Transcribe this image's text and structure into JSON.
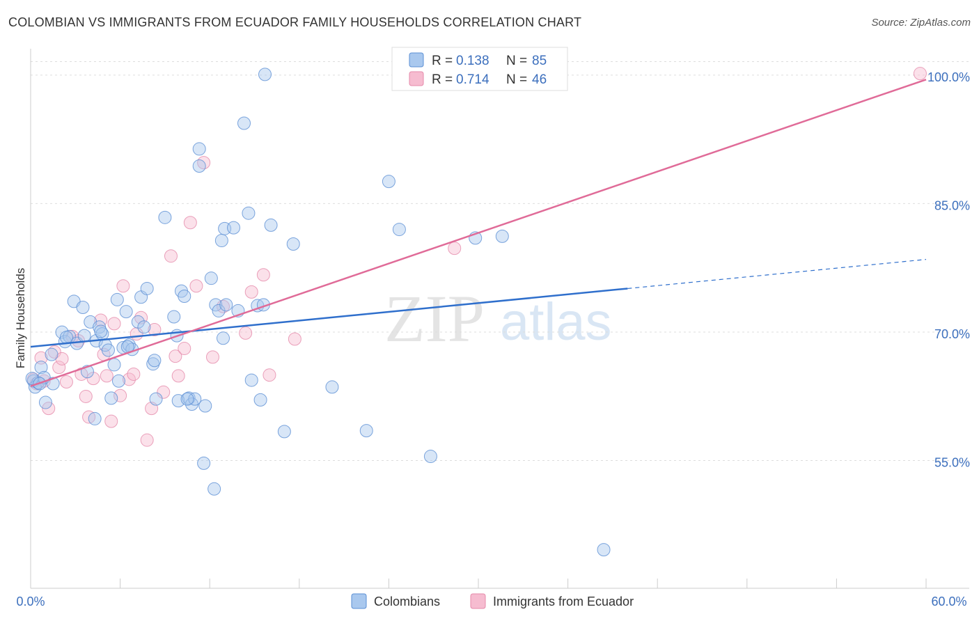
{
  "header": {
    "title": "COLOMBIAN VS IMMIGRANTS FROM ECUADOR FAMILY HOUSEHOLDS CORRELATION CHART",
    "source": "Source: ZipAtlas.com"
  },
  "watermark": {
    "zip": "ZIP",
    "atlas": "atlas"
  },
  "colors": {
    "colombians_fill": "#a9c8ee",
    "colombians_stroke": "#5b8fd4",
    "colombians_line": "#2f6fcc",
    "ecuador_fill": "#f6bcd0",
    "ecuador_stroke": "#e58aaa",
    "ecuador_line": "#e06b98",
    "grid": "#dddddd",
    "tick_label": "#3c6fbd"
  },
  "legend": {
    "rows": [
      {
        "r_label": "R =",
        "r_value": "0.138",
        "n_label": "N =",
        "n_value": "85"
      },
      {
        "r_label": "R =",
        "r_value": "0.714",
        "n_label": "N =",
        "n_value": "46"
      }
    ]
  },
  "bottom_legend": {
    "items": [
      "Colombians",
      "Immigrants from Ecuador"
    ]
  },
  "chart_data": {
    "type": "scatter",
    "title": "COLOMBIAN VS IMMIGRANTS FROM ECUADOR FAMILY HOUSEHOLDS CORRELATION CHART",
    "xlabel": "",
    "ylabel": "Family Households",
    "xlim": [
      0,
      60
    ],
    "ylim": [
      40,
      103
    ],
    "x_tick_labels": [
      "0.0%",
      "60.0%"
    ],
    "y_ticks": [
      55,
      70,
      85,
      100
    ],
    "y_tick_labels": [
      "55.0%",
      "70.0%",
      "85.0%",
      "100.0%"
    ],
    "grid": true,
    "legend_position": "top-center",
    "series": [
      {
        "name": "Colombians",
        "r": 0.138,
        "n": 85,
        "trend": {
          "x": [
            0,
            40,
            60
          ],
          "y": [
            68.2,
            75.0,
            78.4
          ],
          "dashed_from_x": 40
        },
        "points": [
          [
            0.2,
            64.2
          ],
          [
            0.3,
            63.5
          ],
          [
            0.5,
            64.0
          ],
          [
            0.7,
            65.8
          ],
          [
            0.9,
            64.6
          ],
          [
            1.0,
            61.7
          ],
          [
            1.5,
            63.9
          ],
          [
            1.4,
            67.3
          ],
          [
            2.1,
            69.9
          ],
          [
            2.3,
            68.8
          ],
          [
            2.6,
            69.4
          ],
          [
            2.9,
            73.5
          ],
          [
            3.1,
            68.6
          ],
          [
            3.5,
            72.8
          ],
          [
            3.6,
            69.5
          ],
          [
            3.8,
            65.3
          ],
          [
            4.0,
            71.1
          ],
          [
            4.3,
            59.8
          ],
          [
            4.4,
            68.9
          ],
          [
            4.6,
            70.5
          ],
          [
            4.8,
            69.7
          ],
          [
            5.0,
            68.4
          ],
          [
            5.2,
            67.8
          ],
          [
            5.4,
            62.2
          ],
          [
            5.6,
            66.1
          ],
          [
            5.8,
            73.7
          ],
          [
            5.9,
            64.2
          ],
          [
            6.2,
            68.1
          ],
          [
            6.4,
            72.3
          ],
          [
            6.6,
            68.4
          ],
          [
            6.8,
            67.9
          ],
          [
            7.2,
            71.1
          ],
          [
            7.4,
            74.0
          ],
          [
            7.6,
            70.5
          ],
          [
            7.8,
            75.0
          ],
          [
            8.2,
            66.2
          ],
          [
            8.3,
            66.6
          ],
          [
            8.4,
            62.1
          ],
          [
            9.0,
            83.3
          ],
          [
            9.6,
            71.7
          ],
          [
            9.8,
            69.5
          ],
          [
            9.9,
            61.9
          ],
          [
            10.1,
            74.7
          ],
          [
            10.3,
            74.1
          ],
          [
            10.6,
            62.2
          ],
          [
            10.8,
            61.5
          ],
          [
            11.0,
            62.1
          ],
          [
            11.3,
            91.3
          ],
          [
            11.3,
            89.3
          ],
          [
            11.6,
            54.6
          ],
          [
            11.7,
            61.3
          ],
          [
            12.1,
            76.2
          ],
          [
            12.3,
            51.6
          ],
          [
            12.4,
            73.1
          ],
          [
            12.6,
            72.4
          ],
          [
            12.8,
            80.6
          ],
          [
            12.9,
            69.2
          ],
          [
            13.0,
            82.0
          ],
          [
            13.6,
            82.1
          ],
          [
            13.9,
            72.4
          ],
          [
            14.3,
            94.3
          ],
          [
            14.6,
            83.8
          ],
          [
            14.8,
            64.3
          ],
          [
            15.2,
            73.0
          ],
          [
            15.4,
            62.0
          ],
          [
            15.7,
            100.0
          ],
          [
            16.1,
            82.4
          ],
          [
            17.0,
            58.3
          ],
          [
            17.6,
            80.2
          ],
          [
            20.2,
            63.5
          ],
          [
            22.5,
            58.4
          ],
          [
            24.0,
            87.5
          ],
          [
            24.7,
            81.9
          ],
          [
            26.8,
            55.4
          ],
          [
            29.8,
            80.9
          ],
          [
            31.6,
            81.1
          ],
          [
            38.4,
            44.5
          ],
          [
            0.1,
            64.5
          ],
          [
            0.6,
            63.9
          ],
          [
            2.4,
            69.3
          ],
          [
            4.7,
            70.0
          ],
          [
            6.5,
            68.2
          ],
          [
            10.5,
            62.1
          ],
          [
            13.1,
            73.1
          ],
          [
            15.6,
            73.1
          ]
        ]
      },
      {
        "name": "Immigrants from Ecuador",
        "r": 0.714,
        "n": 46,
        "trend": {
          "x": [
            0,
            60
          ],
          "y": [
            63.6,
            99.4
          ]
        },
        "points": [
          [
            0.2,
            64.4
          ],
          [
            0.4,
            63.9
          ],
          [
            0.7,
            66.9
          ],
          [
            0.9,
            64.2
          ],
          [
            1.2,
            61.0
          ],
          [
            1.6,
            67.6
          ],
          [
            1.9,
            65.8
          ],
          [
            2.1,
            66.8
          ],
          [
            2.4,
            64.1
          ],
          [
            2.8,
            69.4
          ],
          [
            3.2,
            68.9
          ],
          [
            3.4,
            65.0
          ],
          [
            3.7,
            62.4
          ],
          [
            3.9,
            60.0
          ],
          [
            4.2,
            64.5
          ],
          [
            4.7,
            71.3
          ],
          [
            4.9,
            67.3
          ],
          [
            5.1,
            64.8
          ],
          [
            5.4,
            59.5
          ],
          [
            5.6,
            70.9
          ],
          [
            6.0,
            62.5
          ],
          [
            6.2,
            75.3
          ],
          [
            6.6,
            64.4
          ],
          [
            6.9,
            65.0
          ],
          [
            7.1,
            69.7
          ],
          [
            7.4,
            71.6
          ],
          [
            7.8,
            57.3
          ],
          [
            8.1,
            61.0
          ],
          [
            8.3,
            70.2
          ],
          [
            8.9,
            62.9
          ],
          [
            9.4,
            78.8
          ],
          [
            9.7,
            67.1
          ],
          [
            9.9,
            64.8
          ],
          [
            10.3,
            68.0
          ],
          [
            10.7,
            82.7
          ],
          [
            11.1,
            75.3
          ],
          [
            11.6,
            89.7
          ],
          [
            12.2,
            67.0
          ],
          [
            12.9,
            72.9
          ],
          [
            14.4,
            69.8
          ],
          [
            14.8,
            74.6
          ],
          [
            15.6,
            76.6
          ],
          [
            16.0,
            64.9
          ],
          [
            17.7,
            69.1
          ],
          [
            28.4,
            79.7
          ],
          [
            59.6,
            100.1
          ]
        ]
      }
    ]
  }
}
